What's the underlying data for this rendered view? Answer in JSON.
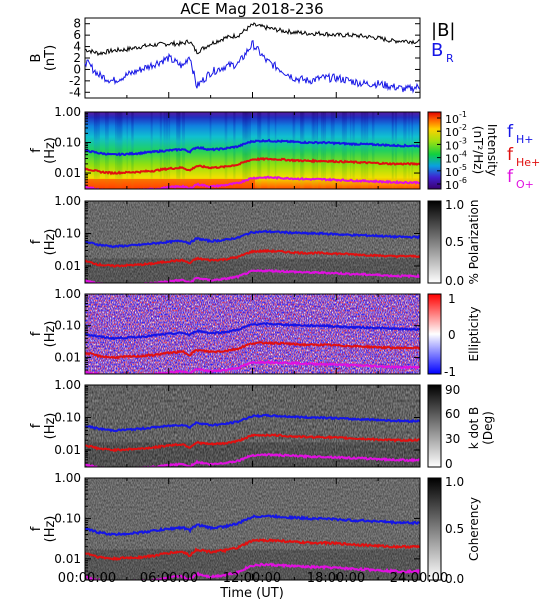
{
  "title": "ACE Mag 2018-236",
  "x_axis": {
    "label": "Time (UT)",
    "ticks": [
      "00:00:00",
      "06:00:00",
      "12:00:00",
      "18:00:00",
      "24:00:00"
    ],
    "range_hours": [
      0,
      24
    ]
  },
  "freq_ticks": [
    "1.00",
    "0.10",
    "0.01"
  ],
  "freq_axis_label": "f",
  "freq_axis_unit": "(Hz)",
  "line_legend": [
    {
      "label": "f",
      "subscript": "H+",
      "color": "#1515e6"
    },
    {
      "label": "f",
      "subscript": "He+",
      "color": "#e01010"
    },
    {
      "label": "f",
      "subscript": "O+",
      "color": "#e010e0"
    }
  ],
  "colors": {
    "black": "#000000",
    "blue": "#1515e6",
    "red": "#e01010",
    "magenta": "#e010e0"
  },
  "panels": {
    "b": {
      "ylabel": "B",
      "yunit": "(nT)",
      "ticks": [
        "8",
        "6",
        "4",
        "2",
        "0",
        "-2",
        "-4"
      ],
      "legend": [
        "|B|",
        "B",
        "R"
      ]
    },
    "intensity": {
      "cb_label": "Intensity",
      "cb_unit": "(nT²/Hz)",
      "cb_ticks": [
        "10",
        "10",
        "10",
        "10",
        "10",
        "10"
      ],
      "cb_exp": [
        "-1",
        "-2",
        "-3",
        "-4",
        "-5",
        "-6"
      ]
    },
    "polarization": {
      "cb_label": "% Polarization",
      "cb_ticks": [
        "1.0",
        "0.5",
        "0.0"
      ]
    },
    "ellipticity": {
      "cb_label": "Ellipticity",
      "cb_ticks": [
        "1",
        "0",
        "-1"
      ]
    },
    "kdotb": {
      "cb_label": "k dot B",
      "cb_unit": "(Deg)",
      "cb_ticks": [
        "90",
        "60",
        "30",
        "0"
      ]
    },
    "coherency": {
      "cb_label": "Coherency",
      "cb_ticks": [
        "1.0",
        "0.5",
        "0.0"
      ]
    }
  },
  "chart_data": [
    {
      "type": "line",
      "title": "ACE Mag 2018-236",
      "ylabel": "B (nT)",
      "ylim": [
        -5,
        9
      ],
      "x_hours": [
        0,
        1,
        2,
        3,
        4,
        5,
        6,
        7,
        7.5,
        8,
        9,
        10,
        11,
        12,
        13,
        14,
        15,
        16,
        17,
        18,
        19,
        20,
        21,
        22,
        23,
        24
      ],
      "series": [
        {
          "name": "|B|",
          "values": [
            3.5,
            2.8,
            3.3,
            3.5,
            4.0,
            4.3,
            4.5,
            4.5,
            5.0,
            3.0,
            4.5,
            5.5,
            6.0,
            7.8,
            7.3,
            6.8,
            6.5,
            6.3,
            6.3,
            6.0,
            6.0,
            5.8,
            5.5,
            5.0,
            5.0,
            4.8
          ]
        },
        {
          "name": "B_R",
          "values": [
            1.5,
            -1.0,
            -2.0,
            -1.0,
            0.0,
            1.0,
            2.0,
            0.5,
            2.5,
            -3.0,
            -0.5,
            0.5,
            1.0,
            4.5,
            1.5,
            0.0,
            -1.5,
            -2.0,
            -1.5,
            -1.5,
            -2.0,
            -2.5,
            -2.5,
            -3.0,
            -3.5,
            -3.0
          ]
        }
      ]
    },
    {
      "type": "line",
      "ylabel": "f (Hz)",
      "yscale": "log",
      "ylim": [
        0.003,
        1.0
      ],
      "x_hours": [
        0,
        1,
        2,
        3,
        4,
        5,
        6,
        7,
        7.5,
        8,
        9,
        10,
        11,
        12,
        13,
        14,
        15,
        16,
        17,
        18,
        19,
        20,
        21,
        22,
        23,
        24
      ],
      "series": [
        {
          "name": "f H+",
          "values": [
            0.055,
            0.045,
            0.04,
            0.042,
            0.045,
            0.05,
            0.055,
            0.06,
            0.05,
            0.07,
            0.058,
            0.063,
            0.075,
            0.11,
            0.115,
            0.11,
            0.105,
            0.1,
            0.1,
            0.095,
            0.09,
            0.088,
            0.085,
            0.08,
            0.078,
            0.078
          ]
        },
        {
          "name": "f He+",
          "values": [
            0.014,
            0.011,
            0.01,
            0.0105,
            0.011,
            0.012,
            0.014,
            0.015,
            0.012,
            0.017,
            0.015,
            0.016,
            0.019,
            0.028,
            0.029,
            0.028,
            0.026,
            0.025,
            0.025,
            0.024,
            0.023,
            0.022,
            0.021,
            0.02,
            0.02,
            0.02
          ]
        },
        {
          "name": "f O+",
          "values": [
            0.0035,
            0.0029,
            0.0026,
            0.0027,
            0.0028,
            0.003,
            0.0034,
            0.0037,
            0.003,
            0.0043,
            0.0036,
            0.004,
            0.0047,
            0.0069,
            0.0072,
            0.0069,
            0.0066,
            0.0063,
            0.0062,
            0.006,
            0.0057,
            0.0055,
            0.0053,
            0.005,
            0.0049,
            0.0049
          ]
        }
      ]
    }
  ]
}
